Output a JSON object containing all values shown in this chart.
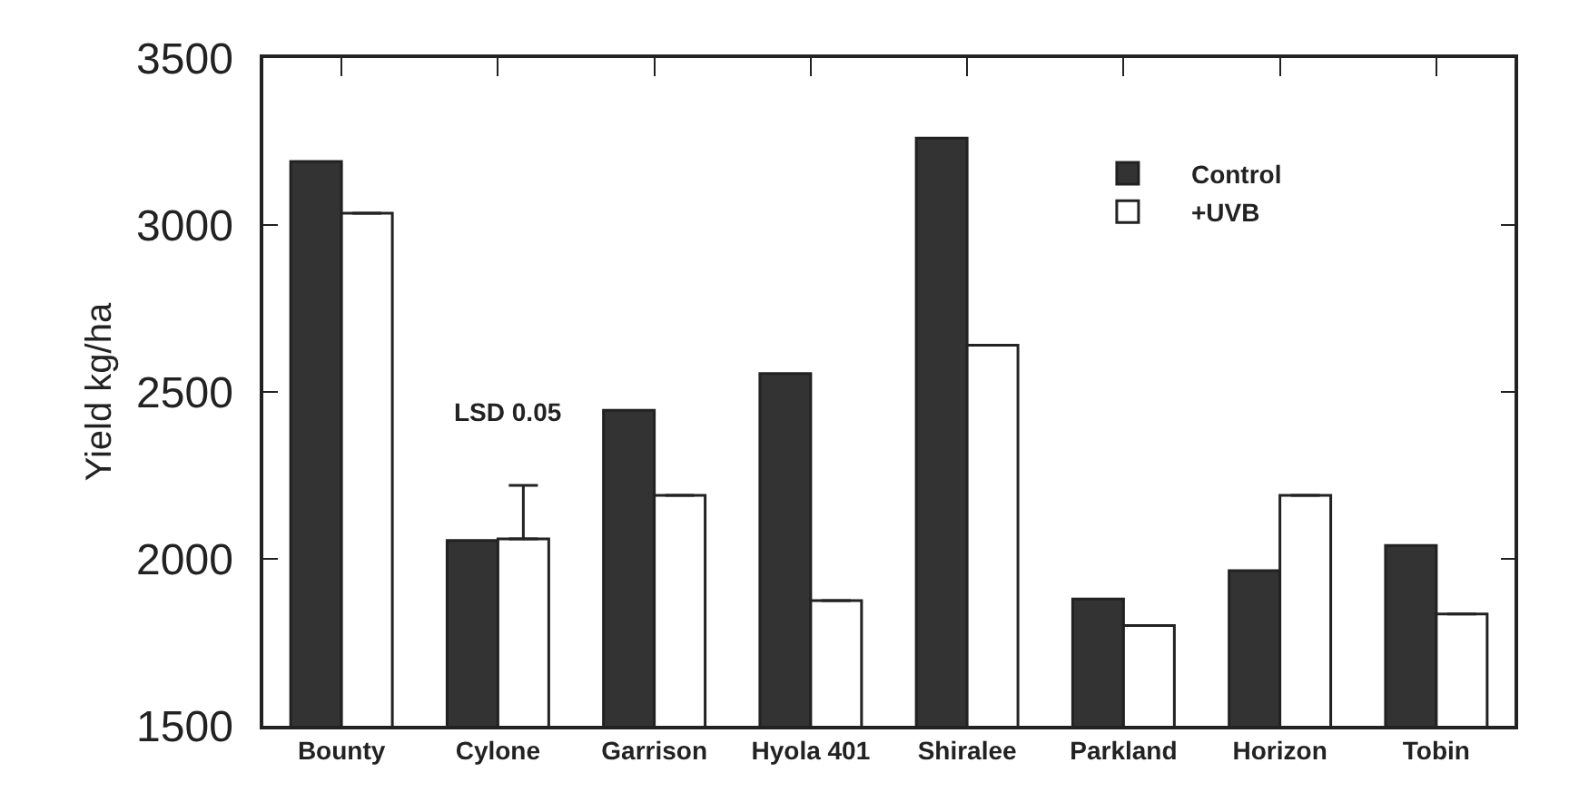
{
  "chart_data": {
    "type": "bar",
    "ylabel": "Yield kg/ha",
    "categories": [
      "Bounty",
      "Cylone",
      "Garrison",
      "Hyola 401",
      "Shiralee",
      "Parkland",
      "Horizon",
      "Tobin"
    ],
    "series": [
      {
        "name": "Control",
        "color": "#333333",
        "values": [
          3190,
          2055,
          2445,
          2555,
          3260,
          1880,
          1965,
          2040
        ]
      },
      {
        "name": "+UVB",
        "color": "#ffffff",
        "values": [
          3035,
          2060,
          2190,
          1875,
          2640,
          1800,
          2190,
          1835
        ],
        "errors": [
          null,
          [
            2060,
            2220
          ],
          null,
          null,
          null,
          null,
          null,
          null
        ]
      }
    ],
    "ylim": [
      1500,
      3500
    ],
    "yticks": [
      1500,
      2000,
      2500,
      3000,
      3500
    ],
    "annotations": [
      "LSD 0.05"
    ],
    "grid": false,
    "legend": "top right"
  }
}
